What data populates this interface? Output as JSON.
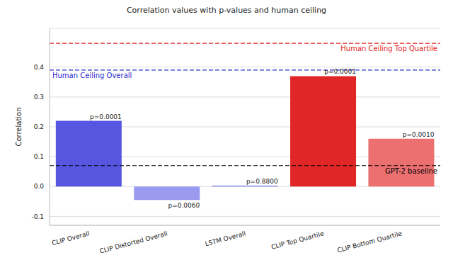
{
  "chart_data": {
    "type": "bar",
    "title": "Correlation values with p-values and human ceiling",
    "y_label": "Correlation",
    "categories": [
      "CLIP Overall",
      "CLIP Distorted Overall",
      "LSTM Overall",
      "CLIP Top Quartile",
      "CLIP Bottom Quartile"
    ],
    "values": [
      0.22,
      -0.045,
      0.003,
      0.37,
      0.16
    ],
    "p_value_labels": [
      "p=0.0001",
      "p=0.0060",
      "p=0.8800",
      "p=0.0001",
      "p=0.0010"
    ],
    "colors": [
      "#5656e0",
      "#9a9af0",
      "#7b7be8",
      "#e02626",
      "#ec7070"
    ],
    "reference_lines": [
      {
        "label": "Human Ceiling Top Quartile",
        "value": 0.48,
        "color": "#e02626"
      },
      {
        "label": "Human Ceiling Overall",
        "value": 0.39,
        "color": "#2a2ad0"
      },
      {
        "label": "GPT-2 baseline",
        "value": 0.07,
        "color": "#000000"
      }
    ],
    "ylim": [
      -0.13,
      0.53
    ],
    "yticks": [
      -0.1,
      {
        "value": 0,
        "label": "0.0"
      },
      0.1,
      0.2,
      0.3,
      0.4
    ],
    "grid": true
  }
}
